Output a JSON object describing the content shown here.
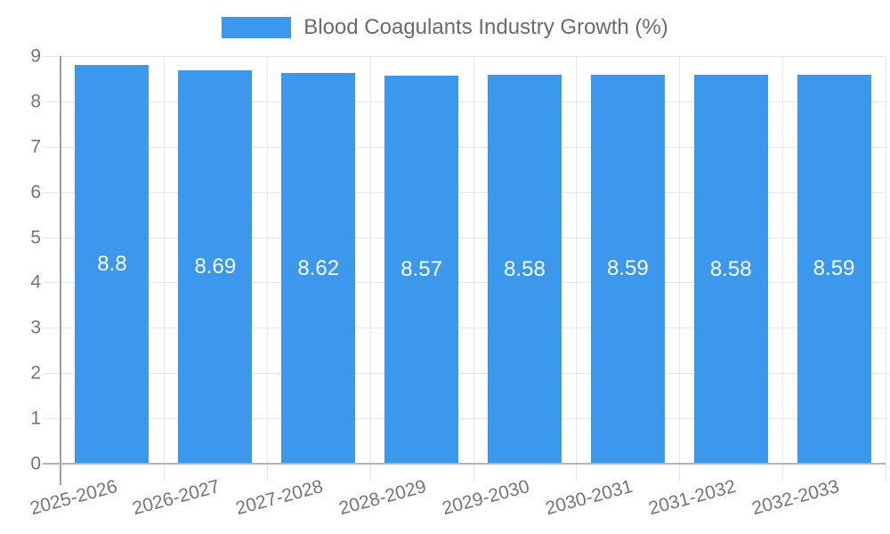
{
  "chart": {
    "legend": {
      "label": "Blood Coagulants Industry Growth (%)"
    }
  },
  "chart_data": {
    "type": "bar",
    "title": "Blood Coagulants Industry Growth (%)",
    "categories": [
      "2025-2026",
      "2026-2027",
      "2027-2028",
      "2028-2029",
      "2029-2030",
      "2030-2031",
      "2031-2032",
      "2032-2033"
    ],
    "values": [
      8.8,
      8.69,
      8.62,
      8.57,
      8.58,
      8.59,
      8.58,
      8.59
    ],
    "value_labels": [
      "8.8",
      "8.69",
      "8.62",
      "8.57",
      "8.58",
      "8.59",
      "8.58",
      "8.59"
    ],
    "xlabel": "",
    "ylabel": "",
    "ylim": [
      0,
      9
    ],
    "yticks": [
      0,
      1,
      2,
      3,
      4,
      5,
      6,
      7,
      8,
      9
    ],
    "grid": true,
    "legend_position": "top-center",
    "colors": {
      "bar": "#3b98ec",
      "grid": "#e6e6e6",
      "axis_line": "#9e9e9e",
      "baseline": "#b3b3b3",
      "axis_text": "#757575",
      "legend_text": "#6b6b6b",
      "bar_label_text": "#ffffff",
      "background": "#ffffff"
    }
  }
}
